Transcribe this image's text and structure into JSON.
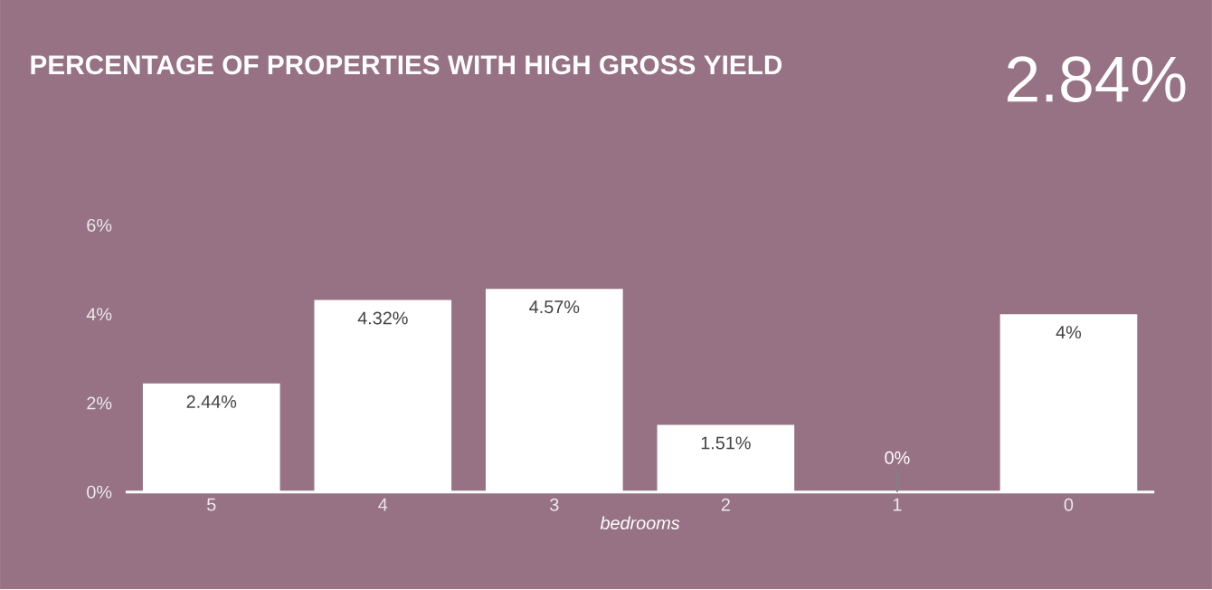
{
  "chart_data": {
    "type": "bar",
    "title": "PERCENTAGE OF PROPERTIES WITH HIGH GROSS YIELD",
    "annotations": [
      "2.84%"
    ],
    "xlabel": "bedrooms",
    "categories": [
      "5",
      "4",
      "3",
      "2",
      "1",
      "0"
    ],
    "values": [
      2.44,
      4.32,
      4.57,
      1.51,
      0,
      4
    ],
    "value_labels": [
      "2.44%",
      "4.32%",
      "4.57%",
      "1.51%",
      "0%",
      "4%"
    ],
    "color": "#ffffff",
    "ylim": [
      0,
      6
    ],
    "yticks": [
      {
        "value": 0,
        "label": "0%"
      },
      {
        "value": 2,
        "label": "2%"
      },
      {
        "value": 4,
        "label": "4%"
      },
      {
        "value": 6,
        "label": "6%"
      }
    ]
  }
}
